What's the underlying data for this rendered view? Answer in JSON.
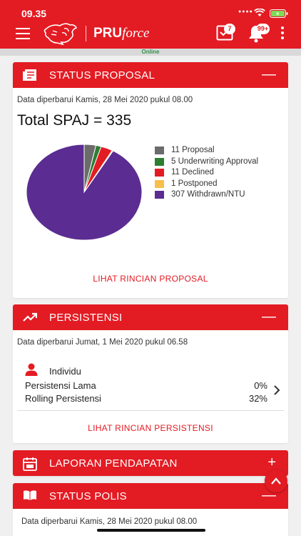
{
  "status_bar": {
    "time": "09.35",
    "battery_color": "#7ed957"
  },
  "app_bar": {
    "brand_bold": "PRU",
    "brand_italic": "force",
    "inbox_badge": "7",
    "notif_badge": "99+",
    "bg_color": "#e31b23"
  },
  "connection": {
    "label": "Online"
  },
  "status_proposal": {
    "title": "STATUS PROPOSAL",
    "toggle": "—",
    "updated": "Data diperbarui Kamis, 28 Mei 2020 pukul 08.00",
    "total": "Total SPAJ = 335",
    "link": "LIHAT RINCIAN PROPOSAL",
    "chart_data": {
      "type": "pie",
      "total": 335,
      "slices": [
        {
          "label": "11 Proposal",
          "value": 11,
          "color": "#6b6b6b"
        },
        {
          "label": "5 Underwriting Approval",
          "value": 5,
          "color": "#2e7d32"
        },
        {
          "label": "11 Declined",
          "value": 11,
          "color": "#e31b23"
        },
        {
          "label": "1 Postponed",
          "value": 1,
          "color": "#f7c04a"
        },
        {
          "label": "307 Withdrawn/NTU",
          "value": 307,
          "color": "#5b2c91"
        }
      ],
      "legend": "right"
    }
  },
  "persistensi": {
    "title": "PERSISTENSI",
    "toggle": "—",
    "updated": "Data diperbarui Jumat, 1 Mei 2020 pukul 06.58",
    "group_label": "Individu",
    "metrics": [
      {
        "label": "Persistensi Lama",
        "value": "0%"
      },
      {
        "label": "Rolling Persistensi",
        "value": "32%"
      }
    ],
    "link": "LIHAT RINCIAN PERSISTENSI"
  },
  "laporan_pendapatan": {
    "title": "LAPORAN PENDAPATAN",
    "toggle": "+"
  },
  "status_polis": {
    "title": "STATUS POLIS",
    "toggle": "—",
    "updated": "Data diperbarui Kamis, 28 Mei 2020 pukul 08.00"
  }
}
